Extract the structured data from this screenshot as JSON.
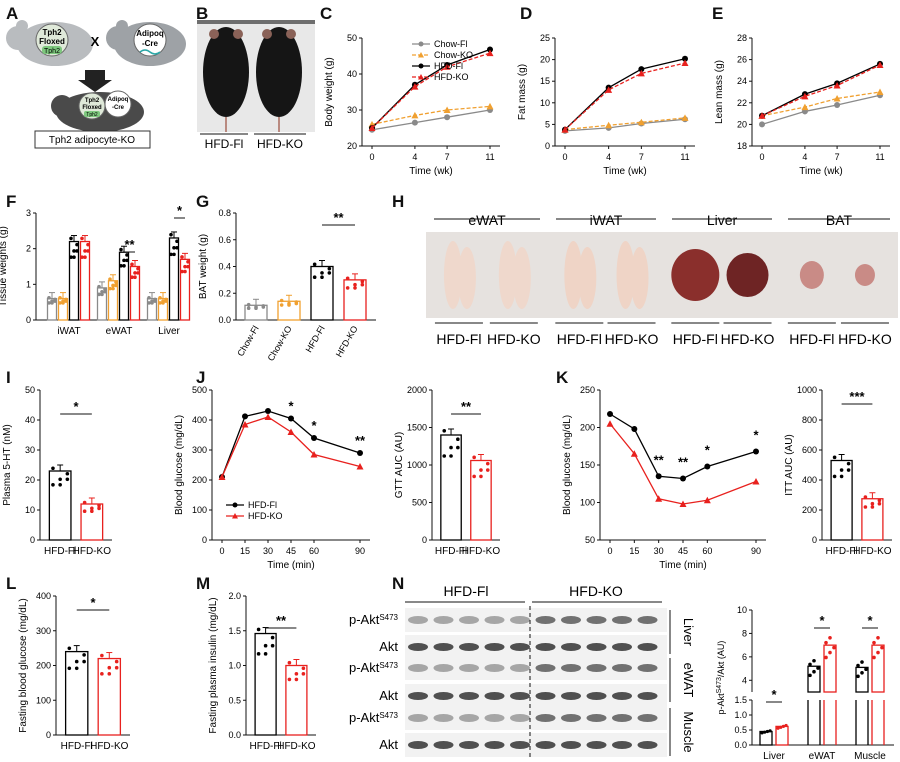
{
  "panel_letters": [
    "A",
    "B",
    "C",
    "D",
    "E",
    "F",
    "G",
    "H",
    "I",
    "J",
    "K",
    "L",
    "M",
    "N"
  ],
  "panel_A": {
    "floxed_label_1": "Tph2",
    "floxed_label_2": "Floxed",
    "gene_label": "Tph2",
    "cross_symbol": "X",
    "cre_label_1": "Adipoq",
    "cre_label_2": "-Cre",
    "offspring_floxed_1": "Tph2",
    "offspring_floxed_2": "Floxed",
    "offspring_gene": "Tph2",
    "offspring_cre_1": "Adipoq",
    "offspring_cre_2": "-Cre",
    "caption": "Tph2 adipocyte-KO"
  },
  "panel_B": {
    "labels": [
      "HFD-Fl",
      "HFD-KO"
    ]
  },
  "panel_H": {
    "tissues": [
      "eWAT",
      "iWAT",
      "Liver",
      "BAT"
    ],
    "group_labels": [
      "HFD-Fl",
      "HFD-KO"
    ]
  },
  "panel_N": {
    "group_headers": [
      "HFD-Fl",
      "HFD-KO"
    ],
    "row_labels": [
      "p-Akt",
      "Akt",
      "p-Akt",
      "Akt",
      "p-Akt",
      "Akt"
    ],
    "row_superscript": "S473",
    "tissue_labels": [
      "Liver",
      "eWAT",
      "Muscle"
    ]
  },
  "colors": {
    "chow_fl": "#8a8a8a",
    "chow_ko": "#f0a030",
    "hfd_fl": "#000000",
    "hfd_ko": "#e8211e"
  },
  "chart_data": [
    {
      "id": "C",
      "type": "line",
      "xlabel": "Time (wk)",
      "ylabel": "Body weight (g)",
      "x": [
        0,
        4,
        7,
        11
      ],
      "ylim": [
        20,
        50
      ],
      "yticks": [
        20,
        30,
        40,
        50
      ],
      "legend": "top-left",
      "series": [
        {
          "name": "Chow-Fl",
          "values": [
            24.5,
            26.5,
            28.0,
            30.0
          ]
        },
        {
          "name": "Chow-KO",
          "values": [
            26.0,
            28.5,
            30.0,
            31.0
          ]
        },
        {
          "name": "HFD-Fl",
          "values": [
            25.0,
            37.0,
            42.5,
            46.8
          ]
        },
        {
          "name": "HFD-KO",
          "values": [
            25.0,
            36.5,
            42.0,
            45.8
          ]
        }
      ]
    },
    {
      "id": "D",
      "type": "line",
      "xlabel": "Time (wk)",
      "ylabel": "Fat mass (g)",
      "x": [
        0,
        4,
        7,
        11
      ],
      "ylim": [
        0,
        25
      ],
      "yticks": [
        0,
        5,
        10,
        15,
        20,
        25
      ],
      "series": [
        {
          "name": "Chow-Fl",
          "values": [
            3.5,
            4.2,
            5.2,
            6.2
          ]
        },
        {
          "name": "Chow-KO",
          "values": [
            3.8,
            4.8,
            5.5,
            6.5
          ]
        },
        {
          "name": "HFD-Fl",
          "values": [
            3.8,
            13.5,
            17.8,
            20.2
          ]
        },
        {
          "name": "HFD-KO",
          "values": [
            3.8,
            13.0,
            16.8,
            19.2
          ]
        }
      ]
    },
    {
      "id": "E",
      "type": "line",
      "xlabel": "Time (wk)",
      "ylabel": "Lean mass (g)",
      "x": [
        0,
        4,
        7,
        11
      ],
      "ylim": [
        18,
        28
      ],
      "yticks": [
        18,
        20,
        22,
        24,
        26,
        28
      ],
      "series": [
        {
          "name": "Chow-Fl",
          "values": [
            20.0,
            21.2,
            21.8,
            22.7
          ]
        },
        {
          "name": "Chow-KO",
          "values": [
            20.8,
            21.6,
            22.4,
            23.0
          ]
        },
        {
          "name": "HFD-Fl",
          "values": [
            20.8,
            22.8,
            23.8,
            25.6
          ]
        },
        {
          "name": "HFD-KO",
          "values": [
            20.8,
            22.6,
            23.6,
            25.5
          ]
        }
      ]
    },
    {
      "id": "F",
      "type": "bar",
      "ylabel": "Tissue weights (g)",
      "ylim": [
        0,
        3
      ],
      "yticks": [
        0,
        1,
        2,
        3
      ],
      "categories": [
        "iWAT",
        "eWAT",
        "Liver"
      ],
      "series": [
        {
          "name": "Chow-Fl",
          "values": [
            0.6,
            0.9,
            0.6
          ]
        },
        {
          "name": "Chow-KO",
          "values": [
            0.6,
            1.1,
            0.6
          ]
        },
        {
          "name": "HFD-Fl",
          "values": [
            2.2,
            1.9,
            2.3
          ]
        },
        {
          "name": "HFD-KO",
          "values": [
            2.2,
            1.5,
            1.7
          ]
        }
      ],
      "annotations": [
        {
          "category": "eWAT",
          "text": "**"
        },
        {
          "category": "Liver",
          "text": "*"
        }
      ]
    },
    {
      "id": "G",
      "type": "bar",
      "ylabel": "BAT weight (g)",
      "ylim": [
        0,
        0.8
      ],
      "yticks": [
        0.0,
        0.2,
        0.4,
        0.6,
        0.8
      ],
      "categories": [
        "Chow-Fl",
        "Chow-KO",
        "HFD-Fl",
        "HFD-KO"
      ],
      "values": [
        0.11,
        0.14,
        0.4,
        0.3
      ],
      "annotation": "**"
    },
    {
      "id": "I",
      "type": "bar",
      "ylabel": "Plasma 5-HT (nM)",
      "ylim": [
        0,
        50
      ],
      "yticks": [
        0,
        10,
        20,
        30,
        40,
        50
      ],
      "categories": [
        "HFD-Fl",
        "HFD-KO"
      ],
      "values": [
        23,
        12
      ],
      "annotation": "*"
    },
    {
      "id": "J",
      "type": "line",
      "xlabel": "Time (min)",
      "ylabel": "Blood glucose (mg/dL)",
      "x": [
        0,
        15,
        30,
        45,
        60,
        90
      ],
      "ylim": [
        0,
        500
      ],
      "yticks": [
        0,
        100,
        200,
        300,
        400,
        500
      ],
      "legend": "bottom-left",
      "series": [
        {
          "name": "HFD-Fl",
          "values": [
            210,
            412,
            430,
            405,
            340,
            290
          ]
        },
        {
          "name": "HFD-KO",
          "values": [
            210,
            385,
            410,
            360,
            285,
            245
          ]
        }
      ],
      "annotations": [
        "*",
        "*",
        "**"
      ]
    },
    {
      "id": "J-AUC",
      "type": "bar",
      "ylabel": "GTT AUC (AU)",
      "ylim": [
        0,
        2000
      ],
      "yticks": [
        0,
        500,
        1000,
        1500,
        2000
      ],
      "categories": [
        "HFD-Fl",
        "HFD-KO"
      ],
      "values": [
        1400,
        1060
      ],
      "annotation": "**"
    },
    {
      "id": "K",
      "type": "line",
      "xlabel": "Time (min)",
      "ylabel": "Blood glucose (mg/dL)",
      "x": [
        0,
        15,
        30,
        45,
        60,
        90
      ],
      "ylim": [
        50,
        250
      ],
      "yticks": [
        50,
        100,
        150,
        200,
        250
      ],
      "series": [
        {
          "name": "HFD-Fl",
          "values": [
            218,
            198,
            135,
            132,
            148,
            168
          ]
        },
        {
          "name": "HFD-KO",
          "values": [
            205,
            165,
            105,
            98,
            103,
            128
          ]
        }
      ],
      "annotations": [
        "**",
        "**",
        "*",
        "*"
      ]
    },
    {
      "id": "K-AUC",
      "type": "bar",
      "ylabel": "ITT AUC (AU)",
      "ylim": [
        0,
        1000
      ],
      "yticks": [
        0,
        200,
        400,
        600,
        800,
        1000
      ],
      "categories": [
        "HFD-Fl",
        "HFD-KO"
      ],
      "values": [
        530,
        275
      ],
      "annotation": "***"
    },
    {
      "id": "L",
      "type": "bar",
      "ylabel": "Fasting blood glucose (mg/dL)",
      "ylim": [
        0,
        400
      ],
      "yticks": [
        0,
        100,
        200,
        300,
        400
      ],
      "categories": [
        "HFD-Fl",
        "HFD-KO"
      ],
      "values": [
        240,
        220
      ],
      "annotation": "*"
    },
    {
      "id": "M",
      "type": "bar",
      "ylabel": "Fasting plasma insulin (mg/dL)",
      "ylim": [
        0,
        2.0
      ],
      "yticks": [
        0.0,
        0.5,
        1.0,
        1.5,
        2.0
      ],
      "categories": [
        "HFD-Fl",
        "HFD-KO"
      ],
      "values": [
        1.46,
        1.0
      ],
      "annotation": "**"
    },
    {
      "id": "N-quant",
      "type": "bar",
      "ylabel": "p-Akt",
      "ylabel_super": "S473",
      "ylabel_suffix": "/Akt (AU)",
      "ylim": [
        0,
        10
      ],
      "yticks": [
        0.0,
        0.5,
        1.0,
        1.5,
        4,
        6,
        8,
        10
      ],
      "categories": [
        "Liver",
        "eWAT",
        "Muscle"
      ],
      "series": [
        {
          "name": "HFD-Fl",
          "values": [
            0.45,
            5.2,
            5.1
          ]
        },
        {
          "name": "HFD-KO",
          "values": [
            0.62,
            7.0,
            7.0
          ]
        }
      ],
      "annotations": [
        "*",
        "*",
        "*"
      ]
    }
  ]
}
